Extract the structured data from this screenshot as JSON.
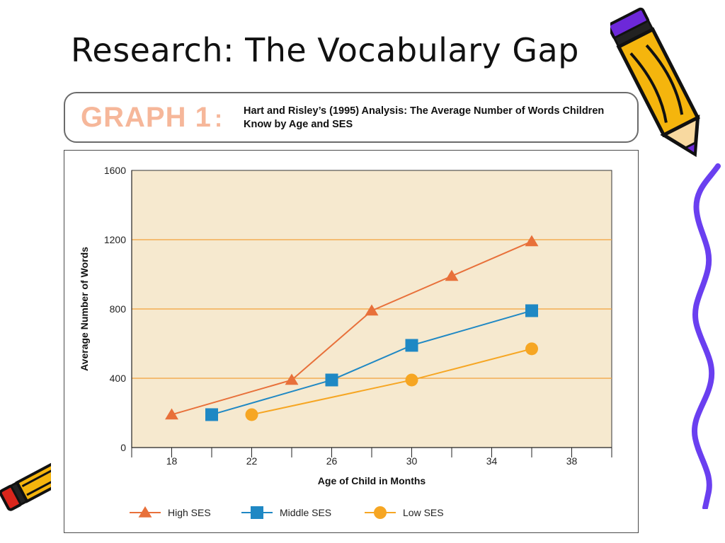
{
  "slide": {
    "title": "Research: The Vocabulary Gap"
  },
  "graph_header": {
    "badge": "GRAPH 1",
    "caption": "Hart and Risley’s (1995) Analysis: The Average Number of Words Children Know by Age and SES"
  },
  "colors": {
    "high_ses": "#e8703a",
    "middle_ses": "#1f88c4",
    "low_ses": "#f6a623",
    "plot_background": "#f6e9cf",
    "gridline": "#f3a23a"
  },
  "chart_data": {
    "type": "line",
    "title": "",
    "xlabel": "Age of Child in Months",
    "ylabel": "Average Number of Words",
    "xlim": [
      16,
      40
    ],
    "ylim": [
      0,
      1600
    ],
    "xticks": [
      18,
      22,
      26,
      30,
      34,
      38
    ],
    "yticks": [
      0,
      400,
      800,
      1200,
      1600
    ],
    "grid": "horizontal",
    "legend": "bottom",
    "series": [
      {
        "name": "High SES",
        "marker": "triangle",
        "x": [
          18,
          24,
          28,
          32,
          36
        ],
        "y": [
          190,
          390,
          790,
          990,
          1190
        ]
      },
      {
        "name": "Middle SES",
        "marker": "square",
        "x": [
          20,
          26,
          30,
          36
        ],
        "y": [
          190,
          390,
          590,
          790
        ]
      },
      {
        "name": "Low SES",
        "marker": "circle",
        "x": [
          22,
          30,
          36
        ],
        "y": [
          190,
          390,
          570
        ]
      }
    ]
  },
  "icons": {
    "pencil_large": "pencil-icon",
    "pencil_small": "pencil-icon",
    "squiggle": "squiggle-decoration-icon"
  }
}
